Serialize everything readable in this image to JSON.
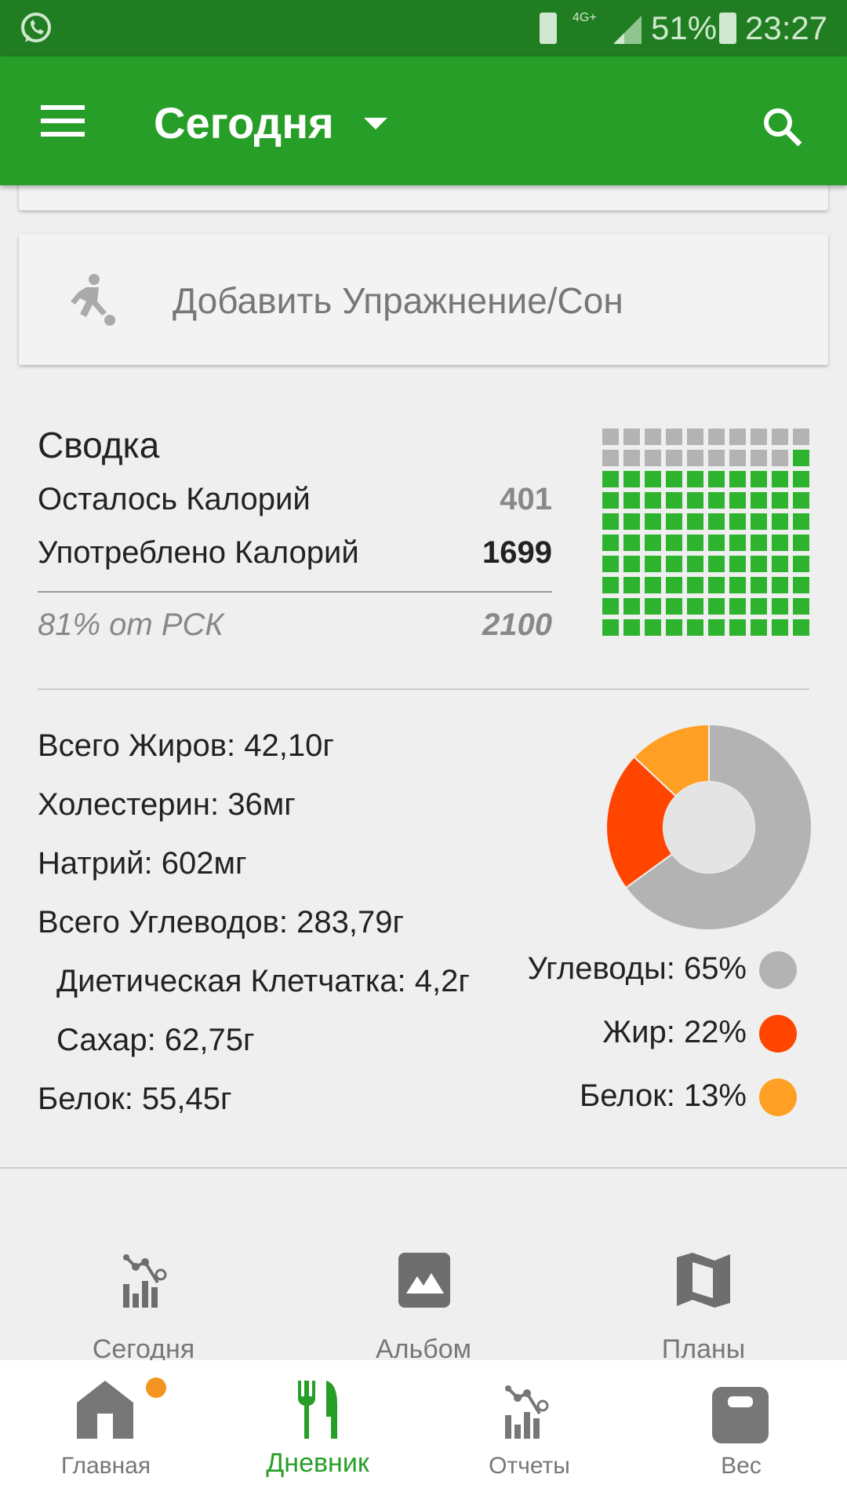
{
  "status_bar": {
    "battery": "51%",
    "time": "23:27",
    "network": "4G+"
  },
  "toolbar": {
    "title": "Сегодня"
  },
  "exercise": {
    "label": "Добавить Упражнение/Сон"
  },
  "summary": {
    "title": "Сводка",
    "remaining_label": "Осталось Калорий",
    "remaining_value": "401",
    "consumed_label": "Употреблено Калорий",
    "consumed_value": "1699",
    "percent_label": "81% от РСК",
    "goal_value": "2100",
    "waffle_filled_percent": 81,
    "colors": {
      "filled": "#2db32d",
      "empty": "#b3b3b3"
    }
  },
  "nutrients": [
    {
      "label": "Всего Жиров: 42,10г"
    },
    {
      "label": "Холестерин: 36мг"
    },
    {
      "label": "Натрий: 602мг"
    },
    {
      "label": "Всего Углеводов: 283,79г"
    },
    {
      "label": "Диетическая Клетчатка: 4,2г"
    },
    {
      "label": "Сахар: 62,75г"
    },
    {
      "label": "Белок: 55,45г"
    }
  ],
  "chart_data": {
    "type": "pie",
    "categories": [
      "Углеводы",
      "Жир",
      "Белок"
    ],
    "values": [
      65,
      22,
      13
    ],
    "colors": [
      "#b3b3b3",
      "#ff4500",
      "#ffa024"
    ],
    "legend": [
      "Углеводы: 65%",
      "Жир: 22%",
      "Белок: 13%"
    ]
  },
  "quick_actions": [
    {
      "label": "Сегодня",
      "icon": "chart-icon"
    },
    {
      "label": "Альбом",
      "icon": "image-icon"
    },
    {
      "label": "Планы",
      "icon": "map-icon"
    }
  ],
  "bottom_nav": [
    {
      "label": "Главная",
      "icon": "home-icon"
    },
    {
      "label": "Дневник",
      "icon": "fork-knife-icon",
      "active": true
    },
    {
      "label": "Отчеты",
      "icon": "chart-icon"
    },
    {
      "label": "Вес",
      "icon": "scale-icon"
    }
  ],
  "accent": "#279e27"
}
